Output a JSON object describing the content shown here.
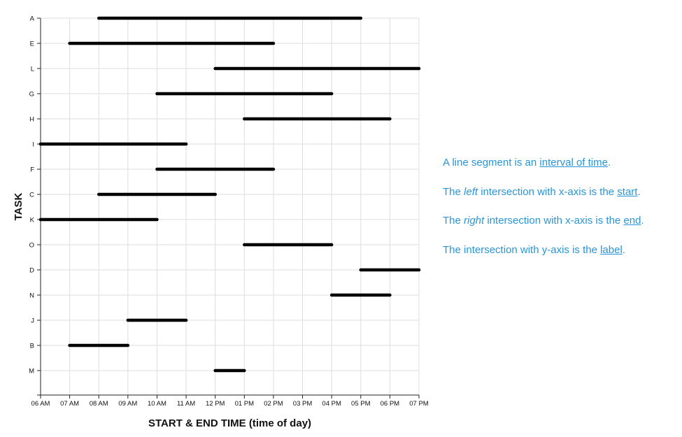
{
  "chart_data": {
    "type": "timeline",
    "xlabel": "START & END TIME (time of day)",
    "ylabel": "TASK",
    "x_ticks": [
      "06 AM",
      "07 AM",
      "08 AM",
      "09 AM",
      "10 AM",
      "11 AM",
      "12 PM",
      "01 PM",
      "02 PM",
      "03 PM",
      "04 PM",
      "05 PM",
      "06 PM",
      "07 PM"
    ],
    "xlim": [
      "06:00",
      "19:00"
    ],
    "categories": [
      "A",
      "E",
      "L",
      "G",
      "H",
      "I",
      "F",
      "C",
      "K",
      "O",
      "D",
      "N",
      "J",
      "B",
      "M"
    ],
    "intervals": [
      {
        "task": "A",
        "start": "08:00",
        "end": "17:00"
      },
      {
        "task": "E",
        "start": "07:00",
        "end": "14:00"
      },
      {
        "task": "L",
        "start": "12:00",
        "end": "19:00"
      },
      {
        "task": "G",
        "start": "10:00",
        "end": "16:00"
      },
      {
        "task": "H",
        "start": "13:00",
        "end": "18:00"
      },
      {
        "task": "I",
        "start": "06:00",
        "end": "11:00"
      },
      {
        "task": "F",
        "start": "10:00",
        "end": "14:00"
      },
      {
        "task": "C",
        "start": "08:00",
        "end": "12:00"
      },
      {
        "task": "K",
        "start": "06:00",
        "end": "10:00"
      },
      {
        "task": "O",
        "start": "13:00",
        "end": "16:00"
      },
      {
        "task": "D",
        "start": "17:00",
        "end": "19:00"
      },
      {
        "task": "N",
        "start": "16:00",
        "end": "18:00"
      },
      {
        "task": "J",
        "start": "09:00",
        "end": "11:00"
      },
      {
        "task": "B",
        "start": "07:00",
        "end": "09:00"
      },
      {
        "task": "M",
        "start": "12:00",
        "end": "13:00"
      }
    ],
    "grid": true,
    "segment_color": "#000000",
    "grid_color": "#dddddd"
  },
  "notes": {
    "color": "#2a95d6",
    "line1": {
      "a": "A line segment is an ",
      "b": "interval of time",
      "c": "."
    },
    "line2": {
      "a": "The ",
      "b": "left",
      "c": " intersection with x-axis is the ",
      "d": "start",
      "e": "."
    },
    "line3": {
      "a": "The ",
      "b": "right",
      "c": " intersection with x-axis is the ",
      "d": "end",
      "e": "."
    },
    "line4": {
      "a": "The intersection with y-axis is the ",
      "b": "label",
      "c": "."
    }
  }
}
